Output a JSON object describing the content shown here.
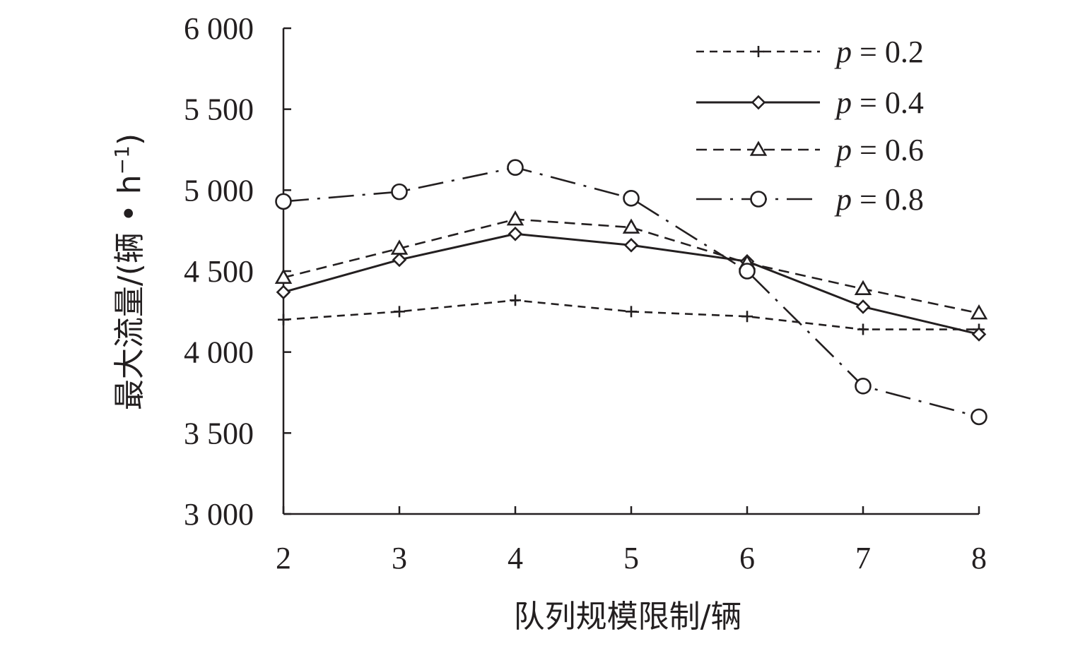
{
  "chart_data": {
    "type": "line",
    "title": "",
    "xlabel": "队列规模限制/辆",
    "ylabel": "最大流量/(辆 • h",
    "ylabel_sup": "−1",
    "ylabel_close": ")",
    "x": [
      2,
      3,
      4,
      5,
      6,
      7,
      8
    ],
    "x_tick_labels": [
      "2",
      "3",
      "4",
      "5",
      "6",
      "7",
      "8"
    ],
    "xlim": [
      2,
      8
    ],
    "ylim": [
      3000,
      6000
    ],
    "y_ticks": [
      3000,
      3500,
      4000,
      4500,
      5000,
      5500,
      6000
    ],
    "y_tick_labels": [
      "3 000",
      "3 500",
      "4 000",
      "4 500",
      "5 000",
      "5 500",
      "6 000"
    ],
    "grid": false,
    "legend_position": "top-right",
    "series": [
      {
        "name": "p = 0.2",
        "name_var": "p",
        "name_rest": " = 0.2",
        "marker": "plus",
        "line_style": "short-dash",
        "values": [
          4200,
          4250,
          4320,
          4250,
          4220,
          4140,
          4140
        ]
      },
      {
        "name": "p = 0.4",
        "name_var": "p",
        "name_rest": " = 0.4",
        "marker": "diamond",
        "line_style": "solid",
        "values": [
          4370,
          4570,
          4730,
          4660,
          4560,
          4280,
          4110
        ]
      },
      {
        "name": "p = 0.6",
        "name_var": "p",
        "name_rest": " = 0.6",
        "marker": "triangle",
        "line_style": "dash",
        "values": [
          4460,
          4640,
          4820,
          4770,
          4550,
          4390,
          4240
        ]
      },
      {
        "name": "p = 0.8",
        "name_var": "p",
        "name_rest": " = 0.8",
        "marker": "circle",
        "line_style": "dash-dot",
        "values": [
          4930,
          4990,
          5140,
          4950,
          4500,
          3790,
          3600
        ]
      }
    ]
  }
}
